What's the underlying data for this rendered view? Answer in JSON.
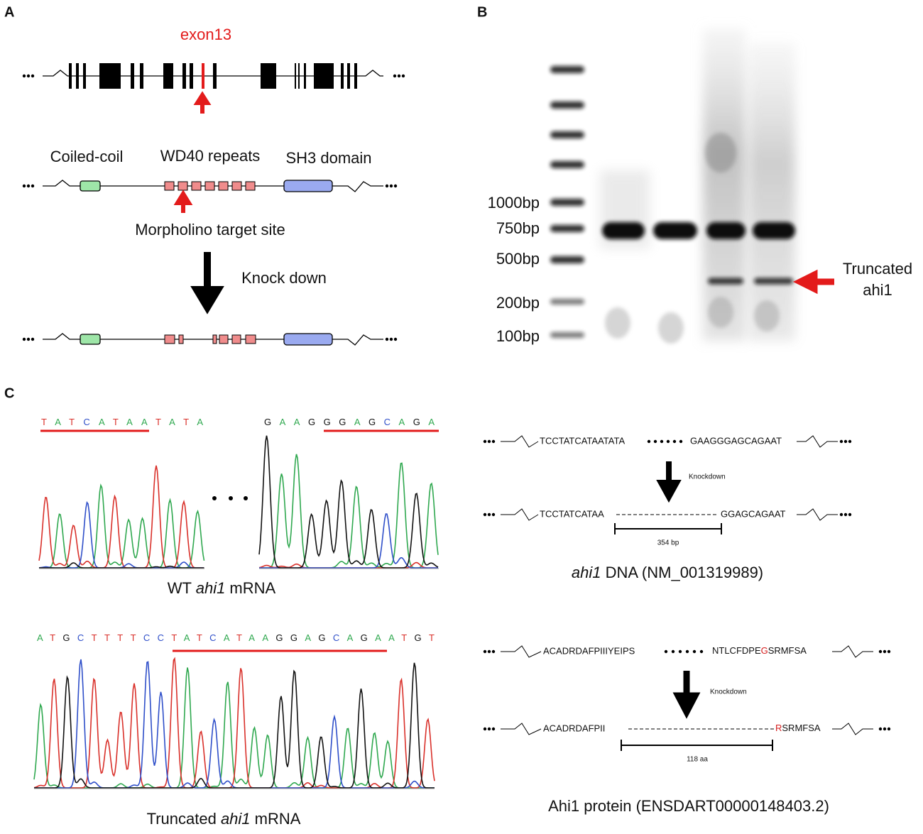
{
  "panel_labels": [
    "A",
    "B",
    "C"
  ],
  "panel_a": {
    "exon_label": "exon13",
    "domains": [
      "Coiled-coil",
      "WD40 repeats",
      "SH3 domain"
    ],
    "target_label": "Morpholino target site",
    "arrow_label": "Knock down"
  },
  "panel_b": {
    "ladder": [
      "1000bp",
      "750bp",
      "500bp",
      "200bp",
      "100bp"
    ],
    "arrow_label": [
      "Truncated",
      "ahi1"
    ]
  },
  "panel_c": {
    "wt_seq": [
      "TATCATAATATA",
      "GAAGGGAGCAGA"
    ],
    "wt_label": [
      "WT ",
      "ahi1",
      " mRNA"
    ],
    "mut_seq": "ATGCTTTTCCTATCATAAGGAGCAGAATGT",
    "mut_label": [
      "Truncated ",
      "ahi1",
      " mRNA"
    ],
    "dna": {
      "before": [
        "TCCTATCATAATATA",
        "GAAGGGAGCAGAAT"
      ],
      "after": [
        "TCCTATCATAA",
        "GGAGCAGAAT"
      ],
      "arrow_label": "Knockdown",
      "scale": "354 bp",
      "caption": [
        "ahi1",
        " DNA (NM_001319989)"
      ]
    },
    "protein": {
      "before": [
        "ACADRDAFPIIIYEIPS",
        "NTLCFDPE",
        "G",
        "SRMFSA"
      ],
      "after": [
        "ACADRDAFPII",
        "R",
        "SRMFSA"
      ],
      "arrow_label": "Knockdown",
      "scale": "118 aa",
      "caption": "Ahi1 protein (ENSDART00000148403.2)"
    }
  }
}
